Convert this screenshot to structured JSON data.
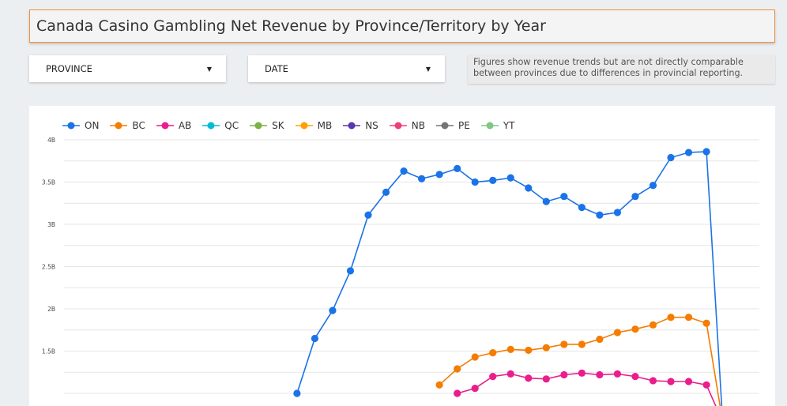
{
  "title": "Canada Casino Gambling Net Revenue by Province/Territory by Year",
  "filters": {
    "province_label": "PROVINCE",
    "date_label": "DATE"
  },
  "note": "Figures show revenue trends but are not directly comparable between provinces due to differences in provincial reporting.",
  "chart_data": {
    "type": "line",
    "y_ticks": [
      "4B",
      "3.5B",
      "3B",
      "2.5B",
      "2B",
      "1.5B"
    ],
    "ylim": [
      1.0,
      4.0
    ],
    "legend_position": "top-left",
    "grid": true,
    "series": [
      {
        "name": "ON",
        "color": "#1a73e8",
        "values": [
          null,
          null,
          null,
          null,
          null,
          null,
          null,
          null,
          null,
          null,
          null,
          null,
          null,
          null,
          null,
          null,
          1.0,
          1.65,
          1.98,
          2.45,
          3.11,
          3.38,
          3.63,
          3.54,
          3.59,
          3.66,
          3.5,
          3.52,
          3.55,
          3.43,
          3.27,
          3.33,
          3.2,
          3.11,
          3.14,
          3.33,
          3.46,
          3.79,
          3.85,
          3.86
        ]
      },
      {
        "name": "BC",
        "color": "#f57c00",
        "values": [
          null,
          null,
          null,
          null,
          null,
          null,
          null,
          null,
          null,
          null,
          null,
          null,
          null,
          null,
          null,
          null,
          null,
          null,
          null,
          null,
          null,
          null,
          null,
          null,
          1.1,
          1.29,
          1.43,
          1.48,
          1.52,
          1.51,
          1.54,
          1.58,
          1.58,
          1.64,
          1.72,
          1.76,
          1.81,
          1.9,
          1.9,
          1.83
        ]
      },
      {
        "name": "AB",
        "color": "#e91e8c",
        "values": [
          null,
          null,
          null,
          null,
          null,
          null,
          null,
          null,
          null,
          null,
          null,
          null,
          null,
          null,
          null,
          null,
          null,
          null,
          null,
          null,
          null,
          null,
          null,
          null,
          null,
          1.0,
          1.06,
          1.2,
          1.23,
          1.18,
          1.17,
          1.22,
          1.24,
          1.22,
          1.23,
          1.2,
          1.15,
          1.14,
          1.14,
          1.1
        ]
      },
      {
        "name": "QC",
        "color": "#00bcd4",
        "values": []
      },
      {
        "name": "SK",
        "color": "#7cb342",
        "values": []
      },
      {
        "name": "MB",
        "color": "#ffa000",
        "values": []
      },
      {
        "name": "NS",
        "color": "#5e35b1",
        "values": []
      },
      {
        "name": "NB",
        "color": "#ec407a",
        "values": []
      },
      {
        "name": "PE",
        "color": "#757575",
        "values": []
      },
      {
        "name": "YT",
        "color": "#81c784",
        "values": []
      }
    ]
  }
}
